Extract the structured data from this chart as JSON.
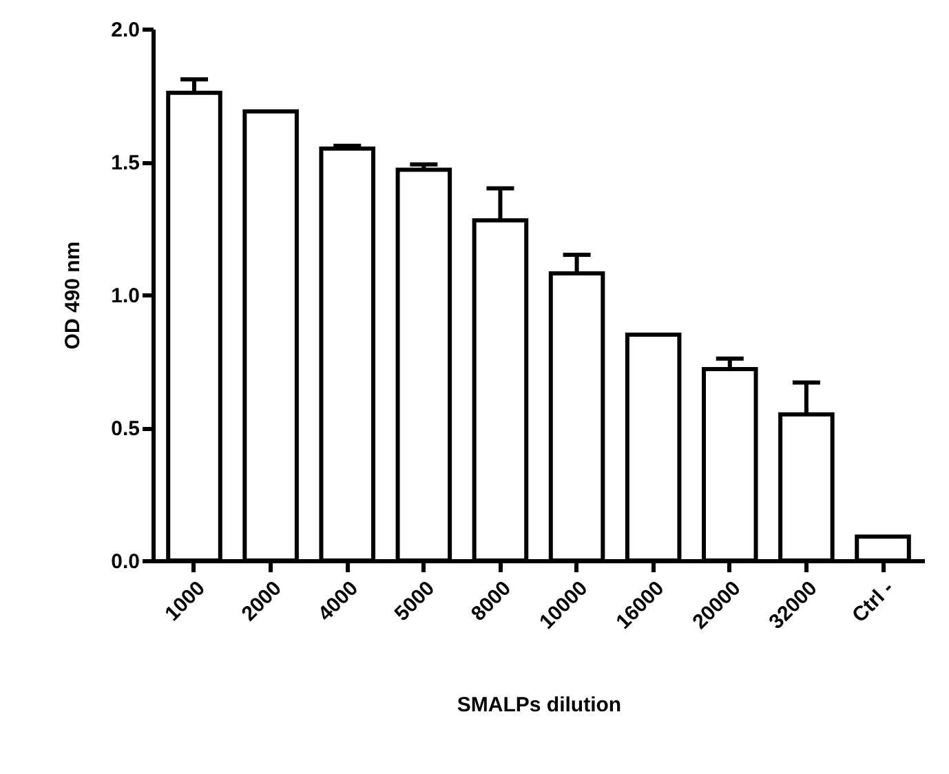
{
  "chart_data": {
    "type": "bar",
    "xlabel": "SMALPs dilution",
    "ylabel": "OD 490 nm",
    "categories": [
      "1000",
      "2000",
      "4000",
      "5000",
      "8000",
      "10000",
      "16000",
      "20000",
      "32000",
      "Ctrl -"
    ],
    "values": [
      1.76,
      1.69,
      1.55,
      1.47,
      1.28,
      1.08,
      0.85,
      0.72,
      0.55,
      0.09
    ],
    "errors": [
      [
        1.76,
        1.81
      ],
      null,
      [
        1.55,
        1.56
      ],
      [
        1.47,
        1.49
      ],
      [
        1.28,
        1.4
      ],
      [
        1.08,
        1.15
      ],
      null,
      [
        0.72,
        0.76
      ],
      [
        0.55,
        0.67
      ],
      null
    ],
    "color": "#ffffff",
    "ylim": [
      0,
      2.0
    ],
    "yticks": [
      {
        "value": 0,
        "label": "0.0"
      },
      {
        "value": 0.5,
        "label": "0.5"
      },
      {
        "value": 1,
        "label": "1.0"
      },
      {
        "value": 1.5,
        "label": "1.5"
      },
      {
        "value": 2,
        "label": "2.0"
      }
    ],
    "grid": false
  }
}
